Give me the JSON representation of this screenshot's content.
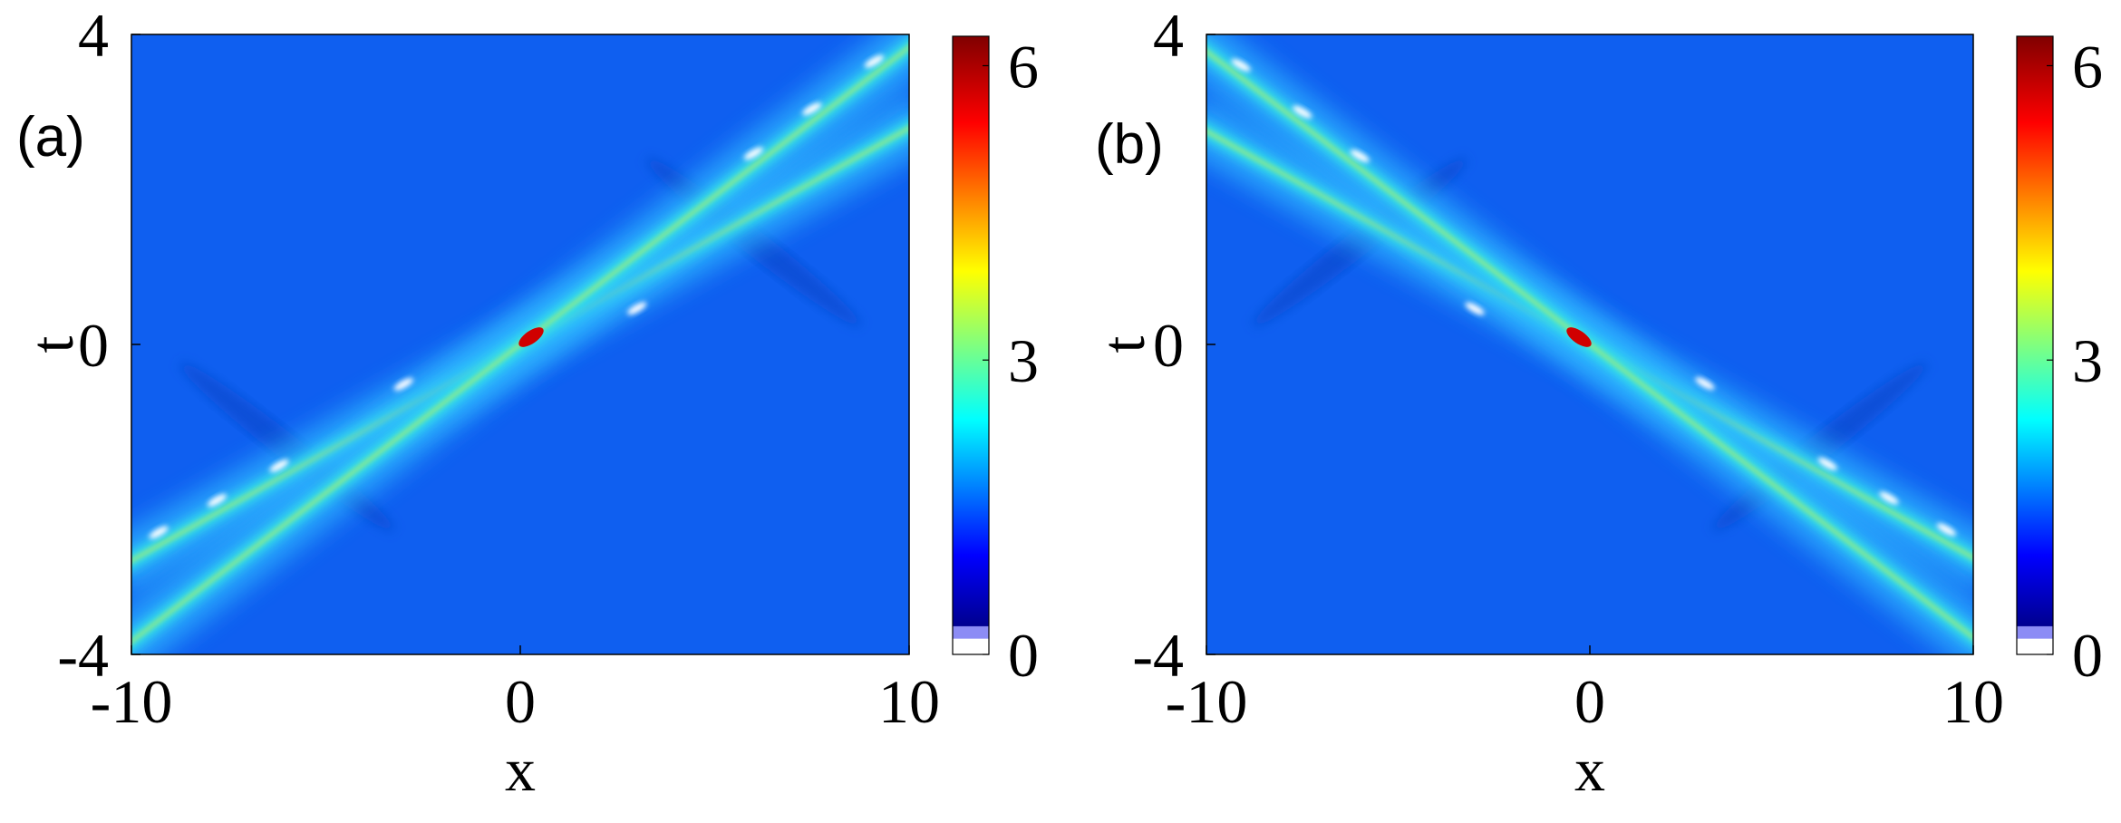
{
  "chart_data": [
    {
      "type": "heatmap",
      "panel_label": "(a)",
      "xlabel": "x",
      "ylabel": "t",
      "xlim": [
        -10,
        10
      ],
      "ylim": [
        -4,
        4
      ],
      "xticks": [
        -10,
        0,
        10
      ],
      "yticks": [
        -4,
        0,
        4
      ],
      "colormap": "jet",
      "clim": [
        0,
        6.3
      ],
      "cticks": [
        0,
        3,
        6
      ]
    },
    {
      "type": "heatmap",
      "panel_label": "(b)",
      "xlabel": "x",
      "ylabel": "t",
      "xlim": [
        -10,
        10
      ],
      "ylim": [
        -4,
        4
      ],
      "xticks": [
        -10,
        0,
        10
      ],
      "yticks": [
        -4,
        0,
        4
      ],
      "colormap": "jet",
      "clim": [
        0,
        6.3
      ],
      "cticks": [
        0,
        3,
        6
      ]
    }
  ]
}
